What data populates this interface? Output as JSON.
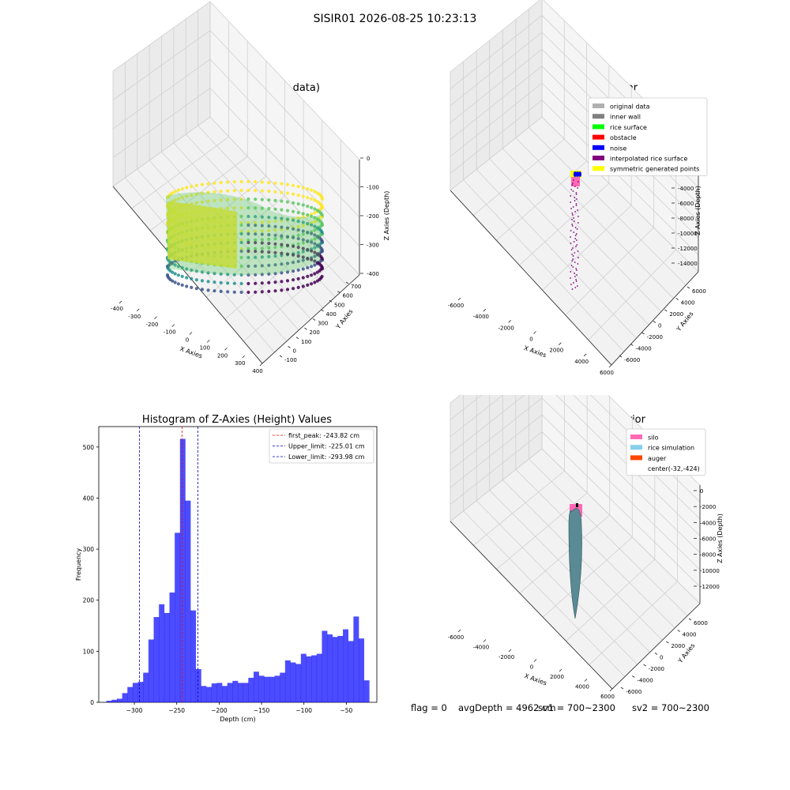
{
  "suptitle": "SISIR01 2026-08-25 10:23:13",
  "panel_row": {
    "title": "3D Plot of Silo Interior(row data)",
    "xlabel": "X Axies",
    "ylabel": "Y Axies",
    "zlabel": "Z Axies (Depth)",
    "xticks": [
      "-400",
      "-300",
      "-200",
      "-100",
      "0",
      "100",
      "200",
      "300",
      "400"
    ],
    "yticks": [
      "-100",
      "0",
      "100",
      "200",
      "300",
      "400",
      "500",
      "600",
      "700"
    ],
    "zticks": [
      "0",
      "-100",
      "-200",
      "-300",
      "-400"
    ]
  },
  "panel_classify": {
    "title": "3D classify of Silo Interior",
    "xlabel": "X Axies",
    "ylabel": "Y Axies",
    "zlabel": "Z Axies (Depth)",
    "xticks": [
      "-6000",
      "-4000",
      "-2000",
      "0",
      "2000",
      "4000",
      "6000"
    ],
    "yticks": [
      "-6000",
      "-4000",
      "-2000",
      "0",
      "2000",
      "4000",
      "6000"
    ],
    "zticks": [
      "0",
      "-2000",
      "-4000",
      "-6000",
      "-8000",
      "-10000",
      "-12000",
      "-14000"
    ],
    "legend": [
      {
        "label": "original data",
        "color": "#b0b0b0"
      },
      {
        "label": "inner wall",
        "color": "#808080"
      },
      {
        "label": "rice surface",
        "color": "#00ff00"
      },
      {
        "label": "obstacle",
        "color": "#ff0000"
      },
      {
        "label": "noise",
        "color": "#0000ff"
      },
      {
        "label": "interpolated rice surface",
        "color": "#800080"
      },
      {
        "label": "symmetric generated points",
        "color": "#ffff00"
      }
    ]
  },
  "panel_sim": {
    "title": "3D simulation of Silo Interior",
    "xlabel": "X Axies",
    "ylabel": "Y Axies",
    "zlabel": "Z Axies (Depth)",
    "xticks": [
      "-6000",
      "-4000",
      "-2000",
      "0",
      "2000",
      "4000",
      "6000"
    ],
    "yticks": [
      "-6000",
      "-4000",
      "-2000",
      "0",
      "2000",
      "4000",
      "6000"
    ],
    "zticks": [
      "0",
      "-2000",
      "-4000",
      "-6000",
      "-8000",
      "-10000",
      "-12000"
    ],
    "legend": [
      {
        "label": "silo",
        "color": "#ff69b4"
      },
      {
        "label": "rice simulation",
        "color": "#87ceeb"
      },
      {
        "label": "auger",
        "color": "#ff4500"
      },
      {
        "label": "center(-32,-424)",
        "color": null
      }
    ]
  },
  "status": {
    "flag": "flag = 0",
    "avg": "avgDepth = 4962 cm",
    "sv1": "sv1 = 700~2300",
    "sv2": "sv2 = 700~2300"
  },
  "chart_data": {
    "type": "bar",
    "title": "Histogram of Z-Axies (Height) Values",
    "xlabel": "Depth (cm)",
    "ylabel": "Frequency",
    "xlim": [
      -342,
      -14
    ],
    "ylim": [
      0,
      540
    ],
    "xticks": [
      -300,
      -250,
      -200,
      -150,
      -100,
      -50
    ],
    "yticks": [
      0,
      100,
      200,
      300,
      400,
      500
    ],
    "bar_color": "#0000ff",
    "bins_start": -333,
    "bin_width": 6.2,
    "values": [
      3,
      5,
      7,
      18,
      30,
      38,
      40,
      58,
      123,
      167,
      192,
      175,
      215,
      332,
      516,
      395,
      180,
      65,
      32,
      30,
      37,
      38,
      32,
      38,
      42,
      38,
      38,
      48,
      60,
      52,
      50,
      50,
      52,
      58,
      82,
      78,
      75,
      95,
      90,
      92,
      95,
      140,
      133,
      128,
      130,
      143,
      120,
      168,
      125,
      43
    ],
    "lines": [
      {
        "label": "first_peak: -243.82 cm",
        "x": -243.82,
        "color": "#ff0000"
      },
      {
        "label": "Upper_limit: -225.01 cm",
        "x": -225.01,
        "color": "#0000cc"
      },
      {
        "label": "Lower_limit: -293.98 cm",
        "x": -293.98,
        "color": "#0000cc"
      }
    ],
    "legend_position": "top-right"
  }
}
